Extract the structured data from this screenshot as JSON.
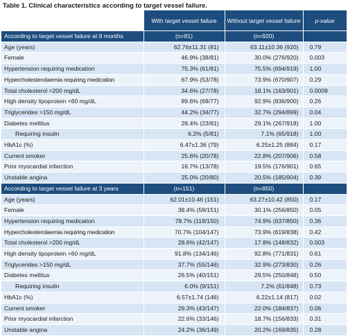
{
  "caption": "Table 1. Clinical characteristics according to target vessel failure.",
  "headers": {
    "with": "With target vessel failure",
    "without": "Without target vessel failure",
    "pvalue": "p-value"
  },
  "sections": [
    {
      "title": "According to target vessel failure at 9 months",
      "n_with": "(n=81)",
      "n_without": "(n=920)",
      "rows": [
        {
          "label": "Age (years)",
          "with": "62.76±11.31 (81)",
          "without": "63.11±10.36 (920)",
          "p": "0.79"
        },
        {
          "label": "Female",
          "with": "46.9% (38/81)",
          "without": "30.0% (276/920)",
          "p": "0.003"
        },
        {
          "label": "Hypertension requiring medication",
          "with": "75.3% (61/81)",
          "without": "75.5% (694/919)",
          "p": "1.00"
        },
        {
          "label": "Hypercholesterolaemia requiring medication",
          "with": "67.9% (53/78)",
          "without": "73.9% (670/907)",
          "p": "0.29"
        },
        {
          "label": "Total cholesterol >200 mg/dL",
          "with": "34.6% (27/78)",
          "without": "18.1% (163/901)",
          "p": "0.0009"
        },
        {
          "label": "High density lipoprotein <60 mg/dL",
          "with": "89.6% (69/77)",
          "without": "92.9% (836/900)",
          "p": "0.26"
        },
        {
          "label": "Triglycerides >150 mg/dL",
          "with": "44.2% (34/77)",
          "without": "32.7% (294/899)",
          "p": "0.04"
        },
        {
          "label": "Diabetes mellitus",
          "with": "28.4% (23/81)",
          "without": "29.1% (267/918)",
          "p": "1.00"
        },
        {
          "label": "Requiring insulin",
          "with": "6.2% (5/81)",
          "without": "7.1% (65/918)",
          "p": "1.00",
          "indent": true
        },
        {
          "label": "HbA1c (%)",
          "with": "6.47±1.36 (79)",
          "without": "6.25±1.25 (884)",
          "p": "0.17"
        },
        {
          "label": "Current smoker",
          "with": "25.6% (20/78)",
          "without": "22.8% (207/906)",
          "p": "0.58"
        },
        {
          "label": "Prior myocardial infarction",
          "with": "16.7% (13/78)",
          "without": "19.5% (176/901)",
          "p": "0.65"
        },
        {
          "label": "Unstable angina",
          "with": "25.0% (20/80)",
          "without": "20.5% (185/904)",
          "p": "0.39"
        }
      ]
    },
    {
      "title": "According to target vessel failure at 3 years",
      "n_with": "(n=151)",
      "n_without": "(n=850)",
      "rows": [
        {
          "label": "Age (years)",
          "with": "62.01±10.46 (151)",
          "without": "63.27±10.42 (850)",
          "p": "0.17"
        },
        {
          "label": "Female",
          "with": "38.4% (58/151)",
          "without": "30.1% (256/850)",
          "p": "0.05"
        },
        {
          "label": "Hypertension requiring medication",
          "with": "78.7% (118/150)",
          "without": "74.9% (637/850)",
          "p": "0.36"
        },
        {
          "label": "Hypercholesterolaemia requiring medication",
          "with": "70.7% (104/147)",
          "without": "73.9% (619/838)",
          "p": "0.42"
        },
        {
          "label": "Total cholesterol >200 mg/dL",
          "with": "28.6% (42/147)",
          "without": "17.8% (148/832)",
          "p": "0.003"
        },
        {
          "label": "High density lipoprotein <60 mg/dL",
          "with": "91.8% (134/146)",
          "without": "92.8% (771/831)",
          "p": "0.61"
        },
        {
          "label": "Triglycerides >150 mg/dL",
          "with": "37.7% (55/146)",
          "without": "32.9% (273/830)",
          "p": "0.26"
        },
        {
          "label": "Diabetes mellitus",
          "with": "26.5% (40/151)",
          "without": "29.5% (250/848)",
          "p": "0.50"
        },
        {
          "label": "Requiring insulin",
          "with": "6.0% (9/151)",
          "without": "7.2% (61/848)",
          "p": "0.73",
          "indent": true
        },
        {
          "label": "HbA1c (%)",
          "with": "6.57±1.74 (146)",
          "without": "6.22±1.14 (817)",
          "p": "0.02"
        },
        {
          "label": "Current smoker",
          "with": "29.3% (43/147)",
          "without": "22.0% (184/837)",
          "p": "0.06"
        },
        {
          "label": "Prior myocardial infarction",
          "with": "22.6% (33/146)",
          "without": "18.7% (156/833)",
          "p": "0.31"
        },
        {
          "label": "Unstable angina",
          "with": "24.2% (36/149)",
          "without": "20.2% (169/835)",
          "p": "0.28"
        }
      ]
    }
  ]
}
